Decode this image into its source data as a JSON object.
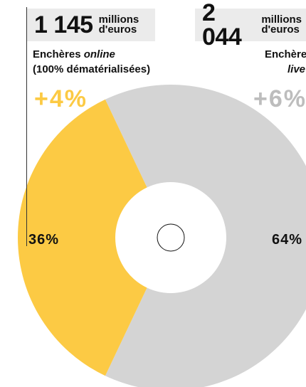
{
  "chart_data": {
    "type": "pie",
    "style": "donut",
    "slices": [
      {
        "key": "online",
        "value": 1145,
        "unit_line1": "millions",
        "unit_line2": "d'euros",
        "caption_prefix": "Enchères ",
        "caption_emphasis": "online",
        "caption_line2": "(100% dématérialisées)",
        "growth": "+4%",
        "share_label": "36%",
        "share": 36,
        "color": "#fcca44"
      },
      {
        "key": "live",
        "value": 2044,
        "unit_line1": "millions",
        "unit_line2": "d'euros",
        "caption_prefix": "Enchères ",
        "caption_emphasis": "live",
        "growth": "+6%",
        "share_label": "64%",
        "share": 64,
        "color": "#d4d4d4"
      }
    ]
  },
  "labels": {
    "online_value": "1 145",
    "live_value": "2 044"
  },
  "colors": {
    "online": "#fcca44",
    "live": "#d4d4d4",
    "box": "#ebebeb",
    "text": "#111111"
  }
}
